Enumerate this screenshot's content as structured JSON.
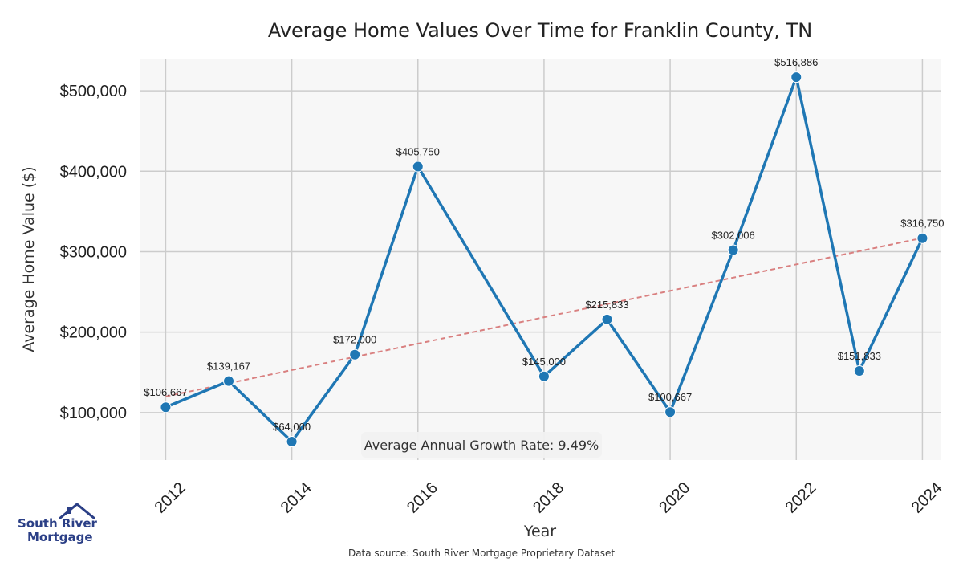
{
  "colors": {
    "line": "#1f77b4",
    "trend": "#d98080",
    "plot_bg": "#f7f7f7",
    "grid": "#cccccc",
    "brand": "#2b3f86"
  },
  "logo": {
    "line1": "South River",
    "line2": "Mortgage",
    "icon": "house-roof-icon"
  },
  "footer": {
    "source": "Data source: South River Mortgage Proprietary Dataset"
  },
  "chart_data": {
    "type": "line",
    "title": "Average Home Values Over Time for Franklin County, TN",
    "xlabel": "Year",
    "ylabel": "Average Home Value ($)",
    "x": [
      2012,
      2013,
      2014,
      2015,
      2016,
      2018,
      2019,
      2020,
      2021,
      2022,
      2023,
      2024
    ],
    "values": [
      106667,
      139167,
      64000,
      172000,
      405750,
      145000,
      215833,
      100667,
      302006,
      516886,
      151833,
      316750
    ],
    "data_labels": [
      "$106,667",
      "$139,167",
      "$64,000",
      "$172,000",
      "$405,750",
      "$145,000",
      "$215,833",
      "$100,667",
      "$302,006",
      "$516,886",
      "$151,833",
      "$316,750"
    ],
    "xticks": [
      2012,
      2014,
      2016,
      2018,
      2020,
      2022,
      2024
    ],
    "xtick_labels": [
      "2012",
      "2014",
      "2016",
      "2018",
      "2020",
      "2022",
      "2024"
    ],
    "yticks": [
      100000,
      200000,
      300000,
      400000,
      500000
    ],
    "ytick_labels": [
      "$100,000",
      "$200,000",
      "$300,000",
      "$400,000",
      "$500,000"
    ],
    "xlim": [
      2011.6,
      2024.3
    ],
    "ylim": [
      41000,
      540000
    ],
    "trend": {
      "type": "linear",
      "start": [
        2012,
        120000
      ],
      "end": [
        2024,
        317000
      ],
      "style": "dashed"
    },
    "annotation": "Average Annual Growth Rate: 9.49%",
    "grid": true,
    "legend": "none"
  }
}
